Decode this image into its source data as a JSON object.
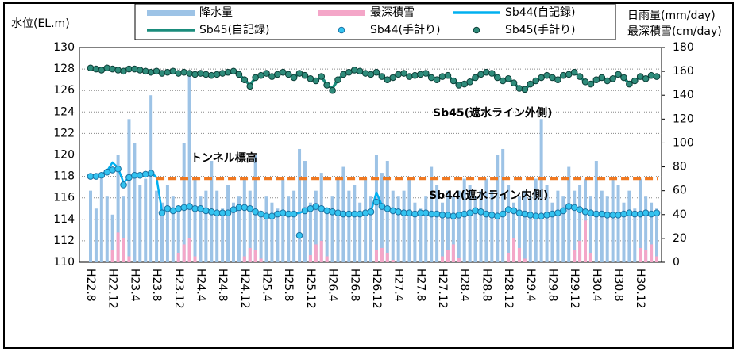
{
  "chart_data": {
    "type": "combo",
    "ylabel": "水位(EL.m)",
    "y2label": [
      "日雨量(mm/day)",
      "最深積雪(cm/day)"
    ],
    "ylim": [
      110,
      130
    ],
    "yticks": [
      110,
      112,
      114,
      116,
      118,
      120,
      122,
      124,
      126,
      128,
      130
    ],
    "y2lim": [
      0,
      180
    ],
    "y2ticks": [
      0,
      20,
      40,
      60,
      80,
      100,
      120,
      140,
      160,
      180
    ],
    "grid": true,
    "categories": [
      "H22.8",
      null,
      null,
      null,
      "H22.12",
      null,
      null,
      null,
      "H23.4",
      null,
      null,
      null,
      "H23.8",
      null,
      null,
      null,
      "H23.12",
      null,
      null,
      null,
      "H24.4",
      null,
      null,
      null,
      "H24.8",
      null,
      null,
      null,
      "H24.12",
      null,
      null,
      null,
      "H25.4",
      null,
      null,
      null,
      "H25.8",
      null,
      null,
      null,
      "H25.12",
      null,
      null,
      null,
      "H26.4",
      null,
      null,
      null,
      "H26.8",
      null,
      null,
      null,
      "H26.12",
      null,
      null,
      null,
      "H27.4",
      null,
      null,
      null,
      "H27.8",
      null,
      null,
      null,
      "H27.12",
      null,
      null,
      null,
      "H28.4",
      null,
      null,
      null,
      "H28.8",
      null,
      null,
      null,
      "H28.12",
      null,
      null,
      null,
      "H29.4",
      null,
      null,
      null,
      "H29.8",
      null,
      null,
      null,
      "H29.12",
      null,
      null,
      null,
      "H30.4",
      null,
      null,
      null,
      "H30.8",
      null,
      null,
      null,
      "H30.12",
      null,
      null,
      null
    ],
    "series": [
      {
        "name": "降水量",
        "type": "bar",
        "axis": "y2",
        "color": "#9dc3e6",
        "values": [
          60,
          45,
          70,
          55,
          40,
          90,
          55,
          120,
          100,
          65,
          70,
          140,
          60,
          50,
          65,
          55,
          45,
          100,
          160,
          70,
          55,
          60,
          85,
          60,
          45,
          65,
          50,
          55,
          70,
          60,
          90,
          40,
          55,
          50,
          45,
          70,
          55,
          60,
          95,
          85,
          50,
          60,
          75,
          45,
          55,
          70,
          80,
          60,
          65,
          50,
          70,
          55,
          90,
          75,
          85,
          60,
          55,
          60,
          70,
          50,
          45,
          55,
          80,
          65,
          50,
          60,
          55,
          60,
          70,
          65,
          55,
          60,
          70,
          60,
          90,
          95,
          65,
          50,
          55,
          60,
          55,
          70,
          120,
          65,
          50,
          60,
          55,
          80,
          60,
          65,
          70,
          55,
          85,
          60,
          55,
          70,
          65,
          50,
          60,
          45,
          70,
          55,
          50,
          45
        ]
      },
      {
        "name": "最深積雪",
        "type": "bar",
        "axis": "y2",
        "color": "#f4a6c8",
        "values": [
          0,
          0,
          0,
          0,
          10,
          25,
          20,
          5,
          0,
          0,
          0,
          0,
          0,
          0,
          0,
          0,
          8,
          15,
          20,
          5,
          0,
          0,
          0,
          0,
          0,
          0,
          0,
          0,
          5,
          12,
          10,
          3,
          0,
          0,
          0,
          0,
          0,
          0,
          0,
          0,
          6,
          15,
          18,
          5,
          0,
          0,
          0,
          0,
          0,
          0,
          0,
          0,
          10,
          12,
          8,
          2,
          0,
          0,
          0,
          0,
          0,
          0,
          0,
          0,
          5,
          10,
          15,
          4,
          0,
          0,
          0,
          0,
          0,
          0,
          0,
          0,
          8,
          20,
          12,
          3,
          0,
          0,
          0,
          0,
          0,
          0,
          0,
          0,
          10,
          18,
          35,
          8,
          0,
          0,
          0,
          0,
          0,
          0,
          0,
          0,
          12,
          10,
          15,
          5
        ]
      },
      {
        "name": "Sb44(自記録)",
        "type": "line",
        "color": "#00b0f0",
        "values": [
          118.0,
          118.1,
          118.2,
          118.5,
          119.3,
          118.8,
          117.4,
          117.9,
          118.1,
          118.2,
          118.3,
          118.4,
          117.9,
          114.7,
          115.0,
          114.9,
          115.0,
          115.1,
          115.2,
          115.1,
          115.0,
          114.8,
          114.7,
          114.6,
          114.6,
          114.7,
          114.9,
          115.2,
          115.1,
          115.0,
          114.8,
          114.5,
          114.3,
          114.4,
          114.5,
          114.6,
          114.5,
          114.5,
          114.6,
          114.8,
          115.1,
          115.3,
          115.0,
          114.9,
          114.7,
          114.6,
          114.5,
          114.5,
          114.5,
          114.5,
          114.6,
          114.7,
          116.5,
          115.3,
          115.0,
          114.8,
          114.7,
          114.6,
          114.6,
          114.5,
          114.6,
          114.6,
          114.5,
          114.5,
          114.4,
          114.4,
          114.3,
          114.4,
          114.5,
          114.6,
          114.8,
          114.7,
          114.5,
          114.4,
          114.3,
          114.5,
          115.0,
          114.8,
          114.6,
          114.5,
          114.4,
          114.3,
          114.3,
          114.4,
          114.5,
          114.6,
          114.8,
          115.3,
          115.1,
          114.9,
          114.7,
          114.6,
          114.5,
          114.5,
          114.4,
          114.4,
          114.4,
          114.5,
          114.6,
          114.5,
          114.5,
          114.6,
          114.5,
          114.6
        ]
      },
      {
        "name": "Sb45(自記録)",
        "type": "line",
        "color": "#1a8c7c",
        "values": [
          128.1,
          128.0,
          127.9,
          128.2,
          128.0,
          127.9,
          127.8,
          128.1,
          128.0,
          127.9,
          127.8,
          127.7,
          127.8,
          127.6,
          127.7,
          127.8,
          127.6,
          127.7,
          127.6,
          127.5,
          127.6,
          127.5,
          127.4,
          127.5,
          127.6,
          127.7,
          127.8,
          127.5,
          127.0,
          126.5,
          127.2,
          127.4,
          127.6,
          127.3,
          127.5,
          127.8,
          127.5,
          127.2,
          127.6,
          127.4,
          127.1,
          126.9,
          127.3,
          126.5,
          126.2,
          127.0,
          127.5,
          127.7,
          127.9,
          127.8,
          127.6,
          127.5,
          127.7,
          127.3,
          127.0,
          127.2,
          127.5,
          127.6,
          127.3,
          127.4,
          127.5,
          127.6,
          127.2,
          127.0,
          127.3,
          127.4,
          126.9,
          126.5,
          126.6,
          126.8,
          127.2,
          127.5,
          127.7,
          127.6,
          127.2,
          126.9,
          127.1,
          126.7,
          126.2,
          126.1,
          126.6,
          126.9,
          127.2,
          127.4,
          127.2,
          127.0,
          127.4,
          127.5,
          127.7,
          127.3,
          126.8,
          126.6,
          127.0,
          127.2,
          126.9,
          127.1,
          127.5,
          127.2,
          126.6,
          126.9,
          127.3,
          127.1,
          127.4,
          127.3
        ]
      },
      {
        "name": "Sb44(手計り)",
        "type": "scatter",
        "color": "#33c3f0",
        "values": [
          118.0,
          118.0,
          118.1,
          118.4,
          118.6,
          118.7,
          117.2,
          117.9,
          118.1,
          118.1,
          118.2,
          118.3,
          null,
          114.6,
          115.0,
          114.8,
          115.0,
          115.1,
          115.2,
          115.0,
          115.0,
          114.8,
          114.7,
          114.6,
          114.6,
          114.6,
          114.9,
          115.1,
          115.1,
          115.0,
          114.7,
          114.5,
          114.3,
          114.3,
          114.5,
          114.6,
          114.5,
          114.5,
          112.5,
          114.8,
          115.0,
          115.2,
          115.0,
          114.8,
          114.7,
          114.6,
          114.5,
          114.5,
          114.5,
          114.5,
          114.6,
          114.7,
          115.6,
          115.2,
          115.0,
          114.8,
          114.7,
          114.6,
          114.6,
          114.5,
          114.6,
          114.6,
          114.5,
          114.5,
          114.4,
          114.4,
          114.3,
          114.4,
          114.5,
          114.6,
          114.8,
          114.7,
          114.5,
          114.4,
          114.3,
          114.5,
          114.9,
          114.8,
          114.6,
          114.5,
          114.4,
          114.3,
          114.3,
          114.4,
          114.5,
          114.6,
          114.8,
          115.2,
          115.1,
          114.9,
          114.7,
          114.6,
          114.5,
          114.5,
          114.4,
          114.4,
          114.4,
          114.5,
          114.6,
          114.5,
          114.5,
          114.6,
          114.5,
          114.6
        ]
      },
      {
        "name": "Sb45(手計り)",
        "type": "scatter",
        "color": "#2e8b7a",
        "values": [
          128.1,
          128.0,
          127.9,
          128.1,
          128.0,
          127.9,
          127.8,
          128.0,
          128.0,
          127.9,
          127.8,
          127.7,
          127.8,
          127.6,
          127.7,
          127.8,
          127.6,
          127.7,
          127.6,
          127.5,
          127.6,
          127.5,
          127.4,
          127.5,
          127.6,
          127.7,
          127.8,
          127.5,
          127.0,
          126.4,
          127.2,
          127.4,
          127.6,
          127.3,
          127.5,
          127.7,
          127.5,
          127.2,
          127.6,
          127.4,
          127.1,
          126.9,
          127.3,
          126.5,
          126.0,
          127.0,
          127.5,
          127.7,
          127.9,
          127.8,
          127.6,
          127.5,
          127.7,
          127.3,
          127.0,
          127.2,
          127.5,
          127.6,
          127.3,
          127.4,
          127.5,
          127.6,
          127.2,
          127.0,
          127.3,
          127.4,
          126.9,
          126.5,
          126.6,
          126.8,
          127.2,
          127.5,
          127.7,
          127.6,
          127.2,
          126.9,
          127.1,
          126.7,
          126.2,
          126.1,
          126.6,
          126.9,
          127.2,
          127.4,
          127.2,
          127.0,
          127.4,
          127.5,
          127.7,
          127.3,
          126.8,
          126.6,
          127.0,
          127.2,
          126.9,
          127.1,
          127.5,
          127.2,
          126.6,
          126.9,
          127.3,
          127.1,
          127.4,
          127.3
        ]
      }
    ],
    "annotations": [
      {
        "text": "トンネル標高",
        "y": 117.8,
        "from": "H23.8",
        "color": "#f07820"
      },
      {
        "text": "Sb45(遮水ライン外側)",
        "color": "#1a9c8c"
      },
      {
        "text": "Sb44(遮水ライン内側)",
        "color": "#33c3f0"
      }
    ]
  }
}
